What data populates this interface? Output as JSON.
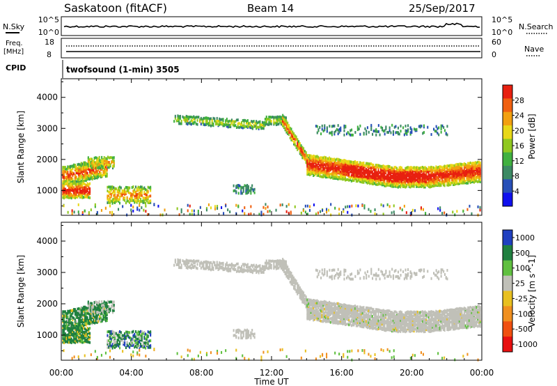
{
  "header": {
    "station": "Saskatoon (fitACF)",
    "beam": "Beam 14",
    "date": "25/Sep/2017"
  },
  "nsky_panel": {
    "label": "N.Sky",
    "left_ticks": [
      "10^5",
      "10^0"
    ],
    "right_ticks": [
      "10^5",
      "10^0"
    ],
    "right_label": "N.Search"
  },
  "freq_panel": {
    "label_line1": "Freq.",
    "label_line2": "[MHz]",
    "left_ticks": [
      "18",
      "8"
    ],
    "right_ticks": [
      "60",
      "0"
    ],
    "right_label": "Nave"
  },
  "cpid_panel": {
    "label": "CPID",
    "text": "twofsound (1-min) 3505"
  },
  "colors": {
    "power_scale": [
      "#1010ee",
      "#2850b8",
      "#3c8a64",
      "#40b040",
      "#90c820",
      "#e8d818",
      "#f2a010",
      "#f06010",
      "#e82010"
    ],
    "velocity_scale": [
      "#2040c0",
      "#208040",
      "#60c040",
      "#c0c0b8",
      "#e8c020",
      "#f09020",
      "#f05010",
      "#e81010"
    ]
  },
  "chart_data": [
    {
      "type": "heatmap",
      "name": "power",
      "ylabel": "Slant Range [km]",
      "ylim": [
        200,
        4600
      ],
      "yticks": [
        1000,
        2000,
        3000,
        4000
      ],
      "xlim_hours": [
        0,
        24
      ],
      "colorbar": {
        "label": "Power [dB]",
        "range": [
          0,
          32
        ],
        "ticks": [
          "4",
          "8",
          "12",
          "16",
          "20",
          "24",
          "28"
        ]
      }
    },
    {
      "type": "heatmap",
      "name": "velocity",
      "ylabel": "Slant Range [km]",
      "ylim": [
        200,
        4600
      ],
      "yticks": [
        1000,
        2000,
        3000,
        4000
      ],
      "xlim_hours": [
        0,
        24
      ],
      "colorbar": {
        "label": "Velocity [m s^-1]",
        "ticks": [
          "1000",
          "500",
          "100",
          "25",
          "-25",
          "-100",
          "-500",
          "-1000"
        ]
      }
    }
  ],
  "xaxis": {
    "ticks": [
      "00:00",
      "04:00",
      "08:00",
      "12:00",
      "16:00",
      "20:00",
      "00:00"
    ],
    "label": "Time UT"
  }
}
